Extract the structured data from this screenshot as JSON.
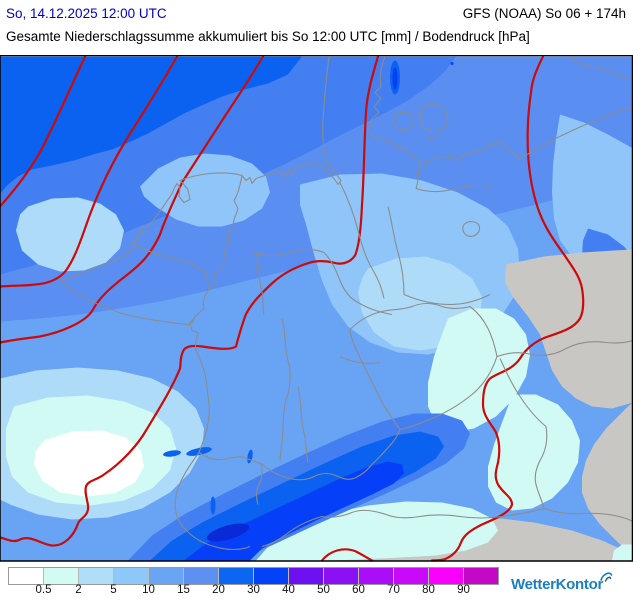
{
  "header": {
    "datetime": "So, 14.12.2025 12:00 UTC",
    "model": "GFS (NOAA) So 06 + 174h",
    "title": "Gesamte Niederschlagssumme akkumuliert bis So 12:00 UTC [mm] / Bodendruck [hPa]"
  },
  "legend": {
    "unit": "mm",
    "ticks": [
      "0.5",
      "2",
      "5",
      "10",
      "15",
      "20",
      "30",
      "40",
      "50",
      "60",
      "70",
      "80",
      "90"
    ],
    "colors": [
      "#ffffff",
      "#d1fbf3",
      "#aedef8",
      "#8ec8f8",
      "#6aa5f4",
      "#5e90f2",
      "#0b66f2",
      "#0442fa",
      "#6d10f2",
      "#8b10f4",
      "#a90ef6",
      "#c90af8",
      "#f800fc",
      "#c408c8"
    ]
  },
  "branding": {
    "logo": "WetterKontor"
  },
  "map": {
    "palette": {
      "base": "#69a3f4",
      "north": "#5b8ef1",
      "medium": "#447ff2",
      "deep": "#0b62f0",
      "strong": "#0540f8",
      "deepest": "#0a2ad8",
      "light": "#8fc5f8",
      "lighter": "#aedcf8",
      "pale": "#d2faf4",
      "nil": "#ffffff",
      "dry": "#c9c7c4",
      "isobar": "#cc0a0a",
      "boundary": "#8c8c8c",
      "frame": "#000000"
    }
  }
}
